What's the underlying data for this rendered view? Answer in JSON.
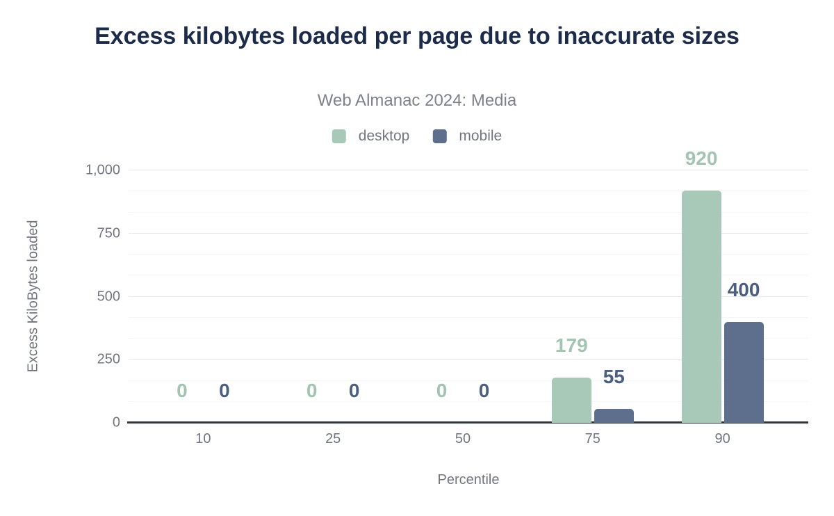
{
  "chart_data": {
    "type": "bar",
    "title": "Excess kilobytes loaded per page due to inaccurate sizes",
    "subtitle": "Web Almanac 2024: Media",
    "xlabel": "Percentile",
    "ylabel": "Excess KiloBytes loaded",
    "categories": [
      "10",
      "25",
      "50",
      "75",
      "90"
    ],
    "series": [
      {
        "name": "desktop",
        "color": "#a8c9b7",
        "label_color": "#a2c4b1",
        "values": [
          0,
          0,
          0,
          179,
          920
        ]
      },
      {
        "name": "mobile",
        "color": "#5d6f8c",
        "label_color": "#4d5f7e",
        "values": [
          0,
          0,
          0,
          55,
          400
        ]
      }
    ],
    "ylim": [
      0,
      1000
    ],
    "y_ticks": [
      {
        "value": 0,
        "label": "0"
      },
      {
        "value": 250,
        "label": "250"
      },
      {
        "value": 500,
        "label": "500"
      },
      {
        "value": 750,
        "label": "750"
      },
      {
        "value": 1000,
        "label": "1,000"
      }
    ],
    "minor_tick_divisions": 3,
    "grid": true,
    "legend_position": "top",
    "value_labels": true
  },
  "colors": {
    "background": "#ffffff",
    "title": "#1b2b49",
    "subtitle": "#7c828c",
    "axis_text": "#71767f",
    "axis_line": "#31353c",
    "grid_major": "#e8e8e8",
    "grid_minor": "#f5f5f5"
  }
}
